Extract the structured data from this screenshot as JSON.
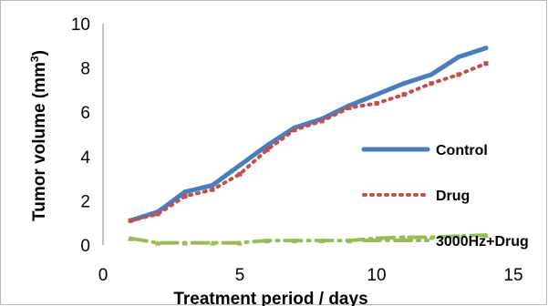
{
  "chart_data": {
    "type": "line",
    "title": "",
    "xlabel": "Treatment period / days",
    "ylabel": "Tumor volume (mm³)",
    "ylabel_main": "Tumor volume (mm",
    "ylabel_sup": "3",
    "ylabel_close": ")",
    "xlim": [
      0,
      15
    ],
    "ylim": [
      0,
      10
    ],
    "x_ticks": [
      "0",
      "5",
      "10",
      "15"
    ],
    "y_ticks": [
      "0",
      "2",
      "4",
      "6",
      "8",
      "10"
    ],
    "grid": false,
    "legend_position": "right",
    "series": [
      {
        "name": "Control",
        "color": "#4a7ebb",
        "style": "solid",
        "x": [
          1,
          2,
          3,
          4,
          5,
          6,
          7,
          8,
          9,
          10,
          11,
          12,
          13,
          14
        ],
        "y": [
          1.1,
          1.5,
          2.4,
          2.7,
          3.6,
          4.5,
          5.3,
          5.7,
          6.3,
          6.8,
          7.3,
          7.7,
          8.5,
          8.9
        ]
      },
      {
        "name": "Drug",
        "color": "#c0504d",
        "style": "dotted",
        "x": [
          1,
          2,
          3,
          4,
          5,
          6,
          7,
          8,
          9,
          10,
          11,
          12,
          13,
          14
        ],
        "y": [
          1.1,
          1.4,
          2.2,
          2.5,
          3.2,
          4.3,
          5.2,
          5.6,
          6.2,
          6.4,
          6.8,
          7.3,
          7.7,
          8.2
        ]
      },
      {
        "name": "3000Hz+Drug",
        "color": "#9bbb59",
        "style": "dashdot",
        "x": [
          1,
          2,
          3,
          4,
          5,
          6,
          7,
          8,
          9,
          10,
          11,
          12,
          13,
          14
        ],
        "y": [
          0.3,
          0.1,
          0.1,
          0.1,
          0.1,
          0.2,
          0.2,
          0.2,
          0.2,
          0.3,
          0.35,
          0.35,
          0.4,
          0.45
        ]
      }
    ]
  }
}
